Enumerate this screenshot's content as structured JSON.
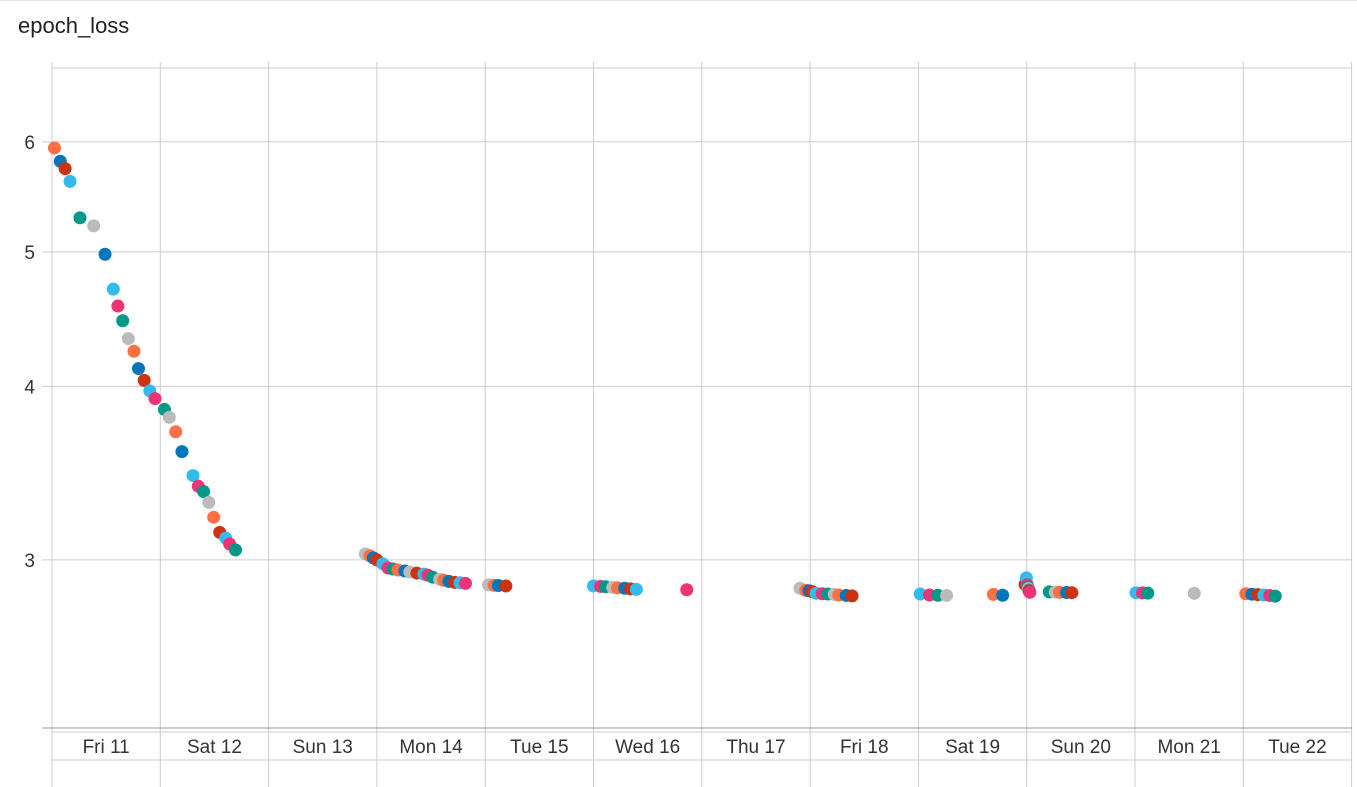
{
  "chart_data": {
    "type": "scatter",
    "title": "epoch_loss",
    "xlabel": "",
    "ylabel": "",
    "y_scale": "log",
    "ylim": [
      2.27,
      6.85
    ],
    "y_ticks": [
      3,
      4,
      5,
      6
    ],
    "x_ticks": [
      "Fri 11",
      "Sat 12",
      "Sun 13",
      "Mon 14",
      "Tue 15",
      "Wed 16",
      "Thu 17",
      "Fri 18",
      "Sat 19",
      "Sun 20",
      "Mon 21",
      "Tue 22"
    ],
    "grid": true,
    "legend": "none",
    "colors": [
      "#ff7043",
      "#0077bb",
      "#cc3311",
      "#33bbee",
      "#009988",
      "#bbbbbb",
      "#ee3377"
    ],
    "points": [
      {
        "x": "Fri 11 00:33",
        "y": 5.94,
        "c": 0
      },
      {
        "x": "Fri 11 01:50",
        "y": 5.81,
        "c": 1
      },
      {
        "x": "Fri 11 02:54",
        "y": 5.74,
        "c": 2
      },
      {
        "x": "Fri 11 04:00",
        "y": 5.62,
        "c": 3
      },
      {
        "x": "Fri 11 06:12",
        "y": 5.29,
        "c": 4
      },
      {
        "x": "Fri 11 09:15",
        "y": 5.22,
        "c": 5
      },
      {
        "x": "Fri 11 11:45",
        "y": 4.98,
        "c": 1
      },
      {
        "x": "Fri 11 13:35",
        "y": 4.7,
        "c": 3
      },
      {
        "x": "Fri 11 14:36",
        "y": 4.57,
        "c": 6
      },
      {
        "x": "Fri 11 15:40",
        "y": 4.46,
        "c": 4
      },
      {
        "x": "Fri 11 16:55",
        "y": 4.33,
        "c": 5
      },
      {
        "x": "Fri 11 18:10",
        "y": 4.24,
        "c": 0
      },
      {
        "x": "Fri 11 19:10",
        "y": 4.12,
        "c": 1
      },
      {
        "x": "Fri 11 20:26",
        "y": 4.04,
        "c": 2
      },
      {
        "x": "Fri 11 21:40",
        "y": 3.97,
        "c": 3
      },
      {
        "x": "Fri 11 22:50",
        "y": 3.92,
        "c": 6
      },
      {
        "x": "Sat 12 00:55",
        "y": 3.85,
        "c": 4
      },
      {
        "x": "Sat 12 02:00",
        "y": 3.8,
        "c": 5
      },
      {
        "x": "Sat 12 03:25",
        "y": 3.71,
        "c": 0
      },
      {
        "x": "Sat 12 04:48",
        "y": 3.59,
        "c": 1
      },
      {
        "x": "Sat 12 07:15",
        "y": 3.45,
        "c": 3
      },
      {
        "x": "Sat 12 08:25",
        "y": 3.39,
        "c": 6
      },
      {
        "x": "Sat 12 09:35",
        "y": 3.36,
        "c": 4
      },
      {
        "x": "Sat 12 10:45",
        "y": 3.3,
        "c": 5
      },
      {
        "x": "Sat 12 11:50",
        "y": 3.22,
        "c": 0
      },
      {
        "x": "Sat 12 13:10",
        "y": 3.14,
        "c": 2
      },
      {
        "x": "Sat 12 14:30",
        "y": 3.11,
        "c": 3
      },
      {
        "x": "Sat 12 15:22",
        "y": 3.08,
        "c": 6
      },
      {
        "x": "Sat 12 16:40",
        "y": 3.05,
        "c": 4
      },
      {
        "x": "Sun 13 21:26",
        "y": 3.03,
        "c": 5
      },
      {
        "x": "Sun 13 22:28",
        "y": 3.02,
        "c": 0
      },
      {
        "x": "Sun 13 23:13",
        "y": 3.01,
        "c": 1
      },
      {
        "x": "Mon 14 00:00",
        "y": 3.0,
        "c": 2
      },
      {
        "x": "Mon 14 01:20",
        "y": 2.98,
        "c": 3
      },
      {
        "x": "Mon 14 02:27",
        "y": 2.96,
        "c": 6
      },
      {
        "x": "Mon 14 03:33",
        "y": 2.955,
        "c": 4
      },
      {
        "x": "Mon 14 04:40",
        "y": 2.95,
        "c": 0
      },
      {
        "x": "Mon 14 06:12",
        "y": 2.945,
        "c": 1
      },
      {
        "x": "Mon 14 07:18",
        "y": 2.94,
        "c": 5
      },
      {
        "x": "Mon 14 08:52",
        "y": 2.935,
        "c": 2
      },
      {
        "x": "Mon 14 10:25",
        "y": 2.93,
        "c": 3
      },
      {
        "x": "Mon 14 11:18",
        "y": 2.925,
        "c": 6
      },
      {
        "x": "Mon 14 12:22",
        "y": 2.915,
        "c": 4
      },
      {
        "x": "Mon 14 13:54",
        "y": 2.905,
        "c": 5
      },
      {
        "x": "Mon 14 14:47",
        "y": 2.9,
        "c": 0
      },
      {
        "x": "Mon 14 15:57",
        "y": 2.895,
        "c": 1
      },
      {
        "x": "Mon 14 17:15",
        "y": 2.89,
        "c": 2
      },
      {
        "x": "Mon 14 18:25",
        "y": 2.888,
        "c": 3
      },
      {
        "x": "Mon 14 19:38",
        "y": 2.885,
        "c": 6
      },
      {
        "x": "Tue 15 00:45",
        "y": 2.878,
        "c": 5
      },
      {
        "x": "Tue 15 02:00",
        "y": 2.876,
        "c": 0
      },
      {
        "x": "Tue 15 02:55",
        "y": 2.875,
        "c": 1
      },
      {
        "x": "Tue 15 04:35",
        "y": 2.873,
        "c": 2
      },
      {
        "x": "Wed 16 00:00",
        "y": 2.873,
        "c": 3
      },
      {
        "x": "Wed 16 01:35",
        "y": 2.871,
        "c": 6
      },
      {
        "x": "Wed 16 02:38",
        "y": 2.869,
        "c": 4
      },
      {
        "x": "Wed 16 04:15",
        "y": 2.866,
        "c": 5
      },
      {
        "x": "Wed 16 05:20",
        "y": 2.864,
        "c": 0
      },
      {
        "x": "Wed 16 06:55",
        "y": 2.862,
        "c": 1
      },
      {
        "x": "Wed 16 08:13",
        "y": 2.859,
        "c": 2
      },
      {
        "x": "Wed 16 09:30",
        "y": 2.857,
        "c": 3
      },
      {
        "x": "Wed 16 20:40",
        "y": 2.855,
        "c": 6
      },
      {
        "x": "Thu 17 21:45",
        "y": 2.862,
        "c": 5
      },
      {
        "x": "Thu 17 23:02",
        "y": 2.852,
        "c": 0
      },
      {
        "x": "Thu 17 23:45",
        "y": 2.85,
        "c": 1
      },
      {
        "x": "Fri 18 00:30",
        "y": 2.846,
        "c": 2
      },
      {
        "x": "Fri 18 01:20",
        "y": 2.838,
        "c": 3
      },
      {
        "x": "Fri 18 02:40",
        "y": 2.836,
        "c": 6
      },
      {
        "x": "Fri 18 03:55",
        "y": 2.835,
        "c": 4
      },
      {
        "x": "Fri 18 05:20",
        "y": 2.833,
        "c": 5
      },
      {
        "x": "Fri 18 06:20",
        "y": 2.83,
        "c": 0
      },
      {
        "x": "Fri 18 08:00",
        "y": 2.828,
        "c": 1
      },
      {
        "x": "Fri 18 09:18",
        "y": 2.826,
        "c": 2
      },
      {
        "x": "Sat 19 00:25",
        "y": 2.835,
        "c": 3
      },
      {
        "x": "Sat 19 02:28",
        "y": 2.83,
        "c": 6
      },
      {
        "x": "Sat 19 04:18",
        "y": 2.829,
        "c": 4
      },
      {
        "x": "Sat 19 06:15",
        "y": 2.828,
        "c": 5
      },
      {
        "x": "Sat 19 16:38",
        "y": 2.833,
        "c": 0
      },
      {
        "x": "Sat 19 18:40",
        "y": 2.829,
        "c": 1
      },
      {
        "x": "Sat 19 23:38",
        "y": 2.88,
        "c": 2
      },
      {
        "x": "Sat 19 23:56",
        "y": 2.912,
        "c": 3
      },
      {
        "x": "Sun 20 00:07",
        "y": 2.879,
        "c": 6
      },
      {
        "x": "Sun 20 00:15",
        "y": 2.868,
        "c": 4
      },
      {
        "x": "Sun 20 00:22",
        "y": 2.86,
        "c": 5
      },
      {
        "x": "Sun 20 00:28",
        "y": 2.855,
        "c": 0
      },
      {
        "x": "Sun 20 00:32",
        "y": 2.85,
        "c": 1
      },
      {
        "x": "Sun 20 00:37",
        "y": 2.846,
        "c": 2
      },
      {
        "x": "Sun 20 00:42",
        "y": 2.843,
        "c": 6
      },
      {
        "x": "Sun 20 05:00",
        "y": 2.845,
        "c": 4
      },
      {
        "x": "Sun 20 06:20",
        "y": 2.844,
        "c": 5
      },
      {
        "x": "Sun 20 07:15",
        "y": 2.843,
        "c": 0
      },
      {
        "x": "Sun 20 08:50",
        "y": 2.842,
        "c": 1
      },
      {
        "x": "Sun 20 10:00",
        "y": 2.841,
        "c": 2
      },
      {
        "x": "Mon 21 00:13",
        "y": 2.841,
        "c": 3
      },
      {
        "x": "Mon 21 01:40",
        "y": 2.84,
        "c": 6
      },
      {
        "x": "Mon 21 02:50",
        "y": 2.839,
        "c": 4
      },
      {
        "x": "Mon 21 13:08",
        "y": 2.838,
        "c": 5
      },
      {
        "x": "Tue 22 00:33",
        "y": 2.836,
        "c": 0
      },
      {
        "x": "Tue 22 01:55",
        "y": 2.834,
        "c": 1
      },
      {
        "x": "Tue 22 03:12",
        "y": 2.832,
        "c": 2
      },
      {
        "x": "Tue 22 04:33",
        "y": 2.83,
        "c": 3
      },
      {
        "x": "Tue 22 05:50",
        "y": 2.828,
        "c": 6
      },
      {
        "x": "Tue 22 07:05",
        "y": 2.825,
        "c": 4
      }
    ]
  }
}
